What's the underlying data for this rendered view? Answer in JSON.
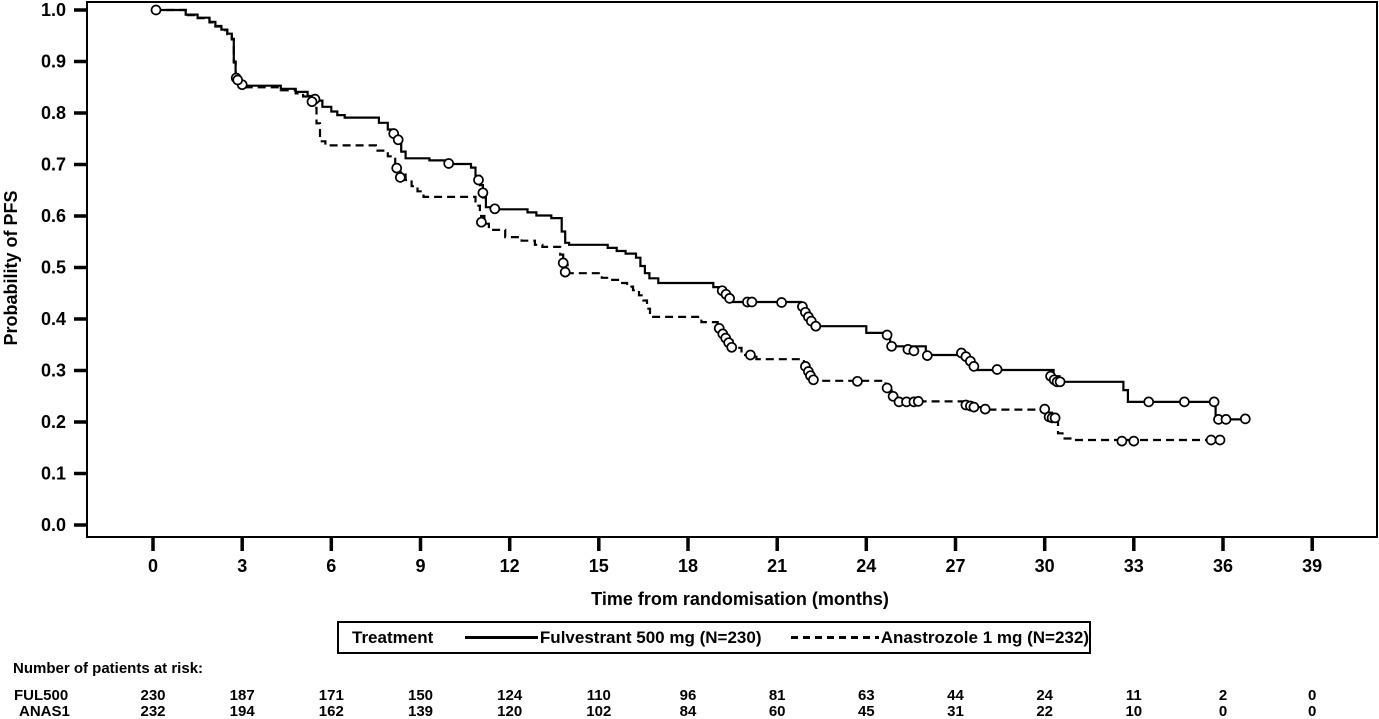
{
  "colors": {
    "line": "#000000",
    "background": "#ffffff"
  },
  "axes": {
    "x": {
      "label": "Time from randomisation (months)",
      "min": 0,
      "max": 39,
      "ticks": [
        0,
        3,
        6,
        9,
        12,
        15,
        18,
        21,
        24,
        27,
        30,
        33,
        36,
        39
      ]
    },
    "y": {
      "label": "Probability of PFS",
      "min": 0.0,
      "max": 1.0,
      "ticks": [
        0.0,
        0.1,
        0.2,
        0.3,
        0.4,
        0.5,
        0.6,
        0.7,
        0.8,
        0.9,
        1.0
      ]
    }
  },
  "legend": {
    "title": "Treatment",
    "series": [
      {
        "label": "Fulvestrant 500 mg (N=230)",
        "line": "solid"
      },
      {
        "label": "Anastrozole 1 mg (N=232)",
        "line": "dashed"
      }
    ]
  },
  "risk_table": {
    "title": "Number of patients at risk:",
    "months": [
      0,
      3,
      6,
      9,
      12,
      15,
      18,
      21,
      24,
      27,
      30,
      33,
      36,
      39
    ],
    "rows": [
      {
        "label": "FUL500",
        "values": [
          230,
          187,
          171,
          150,
          124,
          110,
          96,
          81,
          63,
          44,
          24,
          11,
          2,
          0
        ]
      },
      {
        "label": "ANAS1",
        "values": [
          232,
          194,
          162,
          139,
          120,
          102,
          84,
          60,
          45,
          31,
          22,
          10,
          0,
          0
        ]
      }
    ]
  },
  "chart_data": {
    "type": "line",
    "subtype": "kaplan-meier-step",
    "title": "",
    "xlabel": "Time from randomisation (months)",
    "ylabel": "Probability of PFS",
    "xlim": [
      0,
      39
    ],
    "ylim": [
      0.0,
      1.0
    ],
    "grid": false,
    "legend_position": "below",
    "series": [
      {
        "name": "Fulvestrant 500 mg (N=230)",
        "line": "solid",
        "steps": [
          [
            0,
            1.0
          ],
          [
            1.1,
            0.991
          ],
          [
            1.5,
            0.985
          ],
          [
            1.9,
            0.977
          ],
          [
            2.1,
            0.969
          ],
          [
            2.3,
            0.962
          ],
          [
            2.5,
            0.954
          ],
          [
            2.65,
            0.944
          ],
          [
            2.72,
            0.9
          ],
          [
            2.78,
            0.872
          ],
          [
            2.9,
            0.86
          ],
          [
            3.05,
            0.853
          ],
          [
            4.3,
            0.847
          ],
          [
            4.8,
            0.841
          ],
          [
            5.2,
            0.833
          ],
          [
            5.45,
            0.824
          ],
          [
            5.7,
            0.812
          ],
          [
            6.0,
            0.803
          ],
          [
            6.2,
            0.796
          ],
          [
            6.45,
            0.791
          ],
          [
            7.6,
            0.781
          ],
          [
            7.9,
            0.768
          ],
          [
            8.1,
            0.757
          ],
          [
            8.25,
            0.742
          ],
          [
            8.35,
            0.725
          ],
          [
            8.5,
            0.712
          ],
          [
            9.3,
            0.708
          ],
          [
            9.95,
            0.701
          ],
          [
            10.7,
            0.694
          ],
          [
            10.85,
            0.678
          ],
          [
            11.0,
            0.66
          ],
          [
            11.1,
            0.636
          ],
          [
            11.2,
            0.617
          ],
          [
            11.55,
            0.613
          ],
          [
            12.6,
            0.607
          ],
          [
            12.9,
            0.601
          ],
          [
            13.4,
            0.596
          ],
          [
            13.75,
            0.57
          ],
          [
            13.87,
            0.548
          ],
          [
            14.0,
            0.544
          ],
          [
            15.3,
            0.538
          ],
          [
            15.6,
            0.532
          ],
          [
            15.9,
            0.527
          ],
          [
            16.25,
            0.519
          ],
          [
            16.4,
            0.503
          ],
          [
            16.55,
            0.489
          ],
          [
            16.7,
            0.479
          ],
          [
            17.0,
            0.47
          ],
          [
            18.85,
            0.462
          ],
          [
            19.1,
            0.455
          ],
          [
            19.25,
            0.448
          ],
          [
            19.35,
            0.44
          ],
          [
            19.5,
            0.433
          ],
          [
            21.8,
            0.427
          ],
          [
            21.9,
            0.417
          ],
          [
            22.0,
            0.407
          ],
          [
            22.1,
            0.397
          ],
          [
            22.25,
            0.386
          ],
          [
            24.0,
            0.373
          ],
          [
            24.8,
            0.347
          ],
          [
            26.0,
            0.33
          ],
          [
            27.4,
            0.322
          ],
          [
            27.55,
            0.312
          ],
          [
            27.7,
            0.301
          ],
          [
            30.3,
            0.289
          ],
          [
            30.5,
            0.278
          ],
          [
            32.65,
            0.262
          ],
          [
            32.8,
            0.239
          ],
          [
            35.75,
            0.205
          ],
          [
            36.75,
            0.205
          ]
        ],
        "censor_marks": [
          [
            0.1,
            1.0
          ],
          [
            2.8,
            0.868
          ],
          [
            3.0,
            0.855
          ],
          [
            5.45,
            0.827
          ],
          [
            8.1,
            0.76
          ],
          [
            8.25,
            0.748
          ],
          [
            9.95,
            0.702
          ],
          [
            10.95,
            0.67
          ],
          [
            11.1,
            0.645
          ],
          [
            11.5,
            0.614
          ],
          [
            19.15,
            0.455
          ],
          [
            19.28,
            0.448
          ],
          [
            19.4,
            0.44
          ],
          [
            20.0,
            0.433
          ],
          [
            20.15,
            0.433
          ],
          [
            21.15,
            0.432
          ],
          [
            21.85,
            0.424
          ],
          [
            21.95,
            0.413
          ],
          [
            22.05,
            0.404
          ],
          [
            22.15,
            0.396
          ],
          [
            22.3,
            0.386
          ],
          [
            24.7,
            0.369
          ],
          [
            24.85,
            0.347
          ],
          [
            25.4,
            0.341
          ],
          [
            25.6,
            0.338
          ],
          [
            26.05,
            0.329
          ],
          [
            27.2,
            0.334
          ],
          [
            27.35,
            0.327
          ],
          [
            27.5,
            0.318
          ],
          [
            27.62,
            0.308
          ],
          [
            28.4,
            0.302
          ],
          [
            30.2,
            0.289
          ],
          [
            30.32,
            0.282
          ],
          [
            30.42,
            0.278
          ],
          [
            30.52,
            0.278
          ],
          [
            33.5,
            0.239
          ],
          [
            34.7,
            0.239
          ],
          [
            35.7,
            0.239
          ],
          [
            35.85,
            0.205
          ],
          [
            36.1,
            0.205
          ],
          [
            36.75,
            0.206
          ]
        ]
      },
      {
        "name": "Anastrozole 1 mg (N=232)",
        "line": "dashed",
        "steps": [
          [
            0,
            1.0
          ],
          [
            1.1,
            0.99
          ],
          [
            1.5,
            0.984
          ],
          [
            1.9,
            0.976
          ],
          [
            2.1,
            0.968
          ],
          [
            2.3,
            0.961
          ],
          [
            2.5,
            0.953
          ],
          [
            2.65,
            0.943
          ],
          [
            2.72,
            0.898
          ],
          [
            2.78,
            0.87
          ],
          [
            2.9,
            0.858
          ],
          [
            3.05,
            0.85
          ],
          [
            4.3,
            0.844
          ],
          [
            4.8,
            0.838
          ],
          [
            5.05,
            0.832
          ],
          [
            5.25,
            0.825
          ],
          [
            5.4,
            0.81
          ],
          [
            5.5,
            0.78
          ],
          [
            5.62,
            0.745
          ],
          [
            5.8,
            0.737
          ],
          [
            7.5,
            0.727
          ],
          [
            7.9,
            0.716
          ],
          [
            8.15,
            0.7
          ],
          [
            8.3,
            0.685
          ],
          [
            8.5,
            0.67
          ],
          [
            8.7,
            0.658
          ],
          [
            8.9,
            0.648
          ],
          [
            9.1,
            0.637
          ],
          [
            10.85,
            0.62
          ],
          [
            11.0,
            0.6
          ],
          [
            11.15,
            0.585
          ],
          [
            11.3,
            0.573
          ],
          [
            11.85,
            0.559
          ],
          [
            12.4,
            0.552
          ],
          [
            12.85,
            0.544
          ],
          [
            13.1,
            0.54
          ],
          [
            13.7,
            0.525
          ],
          [
            13.8,
            0.505
          ],
          [
            13.95,
            0.489
          ],
          [
            15.1,
            0.48
          ],
          [
            15.4,
            0.476
          ],
          [
            15.7,
            0.47
          ],
          [
            15.95,
            0.463
          ],
          [
            16.15,
            0.456
          ],
          [
            16.35,
            0.446
          ],
          [
            16.5,
            0.436
          ],
          [
            16.62,
            0.42
          ],
          [
            16.72,
            0.404
          ],
          [
            18.45,
            0.394
          ],
          [
            19.0,
            0.383
          ],
          [
            19.15,
            0.371
          ],
          [
            19.3,
            0.358
          ],
          [
            19.5,
            0.344
          ],
          [
            19.8,
            0.33
          ],
          [
            20.3,
            0.322
          ],
          [
            21.9,
            0.31
          ],
          [
            22.0,
            0.298
          ],
          [
            22.1,
            0.288
          ],
          [
            22.2,
            0.28
          ],
          [
            24.65,
            0.266
          ],
          [
            24.85,
            0.252
          ],
          [
            25.0,
            0.24
          ],
          [
            27.35,
            0.232
          ],
          [
            27.6,
            0.229
          ],
          [
            28.1,
            0.224
          ],
          [
            30.05,
            0.218
          ],
          [
            30.25,
            0.208
          ],
          [
            30.45,
            0.178
          ],
          [
            30.6,
            0.168
          ],
          [
            31.0,
            0.165
          ],
          [
            36.0,
            0.165
          ]
        ],
        "censor_marks": [
          [
            2.85,
            0.864
          ],
          [
            5.35,
            0.822
          ],
          [
            8.2,
            0.693
          ],
          [
            8.32,
            0.675
          ],
          [
            11.05,
            0.588
          ],
          [
            13.8,
            0.509
          ],
          [
            13.87,
            0.491
          ],
          [
            19.05,
            0.382
          ],
          [
            19.17,
            0.371
          ],
          [
            19.27,
            0.363
          ],
          [
            19.37,
            0.354
          ],
          [
            19.47,
            0.345
          ],
          [
            20.1,
            0.33
          ],
          [
            21.95,
            0.308
          ],
          [
            22.05,
            0.298
          ],
          [
            22.12,
            0.29
          ],
          [
            22.22,
            0.282
          ],
          [
            23.7,
            0.279
          ],
          [
            24.7,
            0.266
          ],
          [
            24.9,
            0.25
          ],
          [
            25.1,
            0.239
          ],
          [
            25.35,
            0.239
          ],
          [
            25.6,
            0.239
          ],
          [
            25.75,
            0.24
          ],
          [
            27.35,
            0.233
          ],
          [
            27.5,
            0.231
          ],
          [
            27.62,
            0.229
          ],
          [
            28.0,
            0.225
          ],
          [
            30.0,
            0.225
          ],
          [
            30.15,
            0.21
          ],
          [
            30.25,
            0.208
          ],
          [
            30.35,
            0.208
          ],
          [
            32.6,
            0.163
          ],
          [
            33.0,
            0.163
          ],
          [
            35.6,
            0.165
          ],
          [
            35.9,
            0.165
          ]
        ]
      }
    ]
  }
}
